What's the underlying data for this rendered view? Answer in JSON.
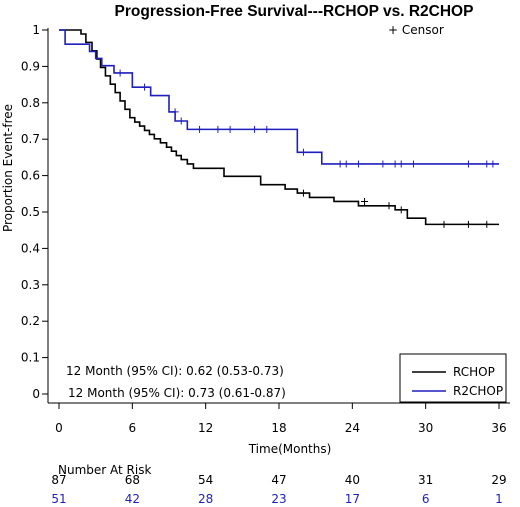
{
  "chart_data": {
    "type": "line",
    "title": "Progression-Free Survival---RCHOP vs. R2CHOP",
    "xlabel": "Time(Months)",
    "ylabel": "Proportion Event-free",
    "xlim": [
      0,
      36
    ],
    "ylim": [
      0,
      1
    ],
    "x_ticks": [
      "0",
      "6",
      "12",
      "18",
      "24",
      "30",
      "36"
    ],
    "y_ticks": [
      "0",
      "0.1",
      "0.2",
      "0.3",
      "0.4",
      "0.5",
      "0.6",
      "0.7",
      "0.8",
      "0.9",
      "1"
    ],
    "censor_label": "+ Censor",
    "legend": {
      "position": "bottom-right",
      "entries": [
        "RCHOP",
        "R2CHOP"
      ]
    },
    "annotations": [
      {
        "text": "12 Month (95% CI): 0.62 (0.53-0.73)",
        "color": "#000000"
      },
      {
        "text": "12 Month (95% CI): 0.73 (0.61-0.87)",
        "color": "#1f1fbf"
      }
    ],
    "risk_table": {
      "title": "Number At Risk",
      "rows": [
        {
          "color": "#000000",
          "values": [
            "87",
            "68",
            "54",
            "47",
            "40",
            "31",
            "29"
          ]
        },
        {
          "color": "#1f1fbf",
          "values": [
            "51",
            "42",
            "28",
            "23",
            "17",
            "6",
            "1"
          ]
        }
      ]
    },
    "series": [
      {
        "name": "RCHOP",
        "color": "#000000",
        "x": [
          0,
          1.8,
          2.2,
          2.7,
          3.1,
          3.4,
          3.8,
          4.2,
          4.6,
          5.0,
          5.4,
          5.8,
          6.2,
          6.6,
          7.0,
          7.4,
          7.8,
          8.3,
          8.8,
          9.2,
          9.6,
          10.0,
          10.5,
          11.0,
          12.0,
          13.5,
          14.5,
          16.5,
          18.5,
          19.5,
          20.5,
          22.5,
          24.5,
          27.5,
          28.5,
          30.0,
          36.0
        ],
        "y": [
          1,
          0.989,
          0.966,
          0.943,
          0.92,
          0.897,
          0.874,
          0.851,
          0.828,
          0.805,
          0.782,
          0.759,
          0.747,
          0.736,
          0.724,
          0.713,
          0.701,
          0.69,
          0.678,
          0.667,
          0.655,
          0.644,
          0.632,
          0.62,
          0.62,
          0.598,
          0.598,
          0.575,
          0.563,
          0.552,
          0.54,
          0.529,
          0.517,
          0.506,
          0.483,
          0.466,
          0.466
        ],
        "censor_x": [
          20.0,
          25.0,
          27.0,
          28.0,
          31.5,
          33.5,
          35.0
        ],
        "censor_y": [
          0.552,
          0.529,
          0.517,
          0.506,
          0.466,
          0.466,
          0.466
        ]
      },
      {
        "name": "R2CHOP",
        "color": "#1f1fbf",
        "x": [
          0,
          0.5,
          2.5,
          3.0,
          3.5,
          4.5,
          6.0,
          7.5,
          9.0,
          9.5,
          10.5,
          19.5,
          21.5,
          22.0,
          36.0
        ],
        "y": [
          1,
          0.961,
          0.941,
          0.922,
          0.902,
          0.882,
          0.843,
          0.82,
          0.775,
          0.75,
          0.727,
          0.664,
          0.632,
          0.632,
          0.632
        ],
        "censor_x": [
          5.0,
          7.0,
          9.5,
          10.0,
          11.5,
          13.0,
          14.0,
          16.0,
          17.0,
          20.0,
          23.0,
          23.5,
          24.5,
          26.5,
          27.5,
          28.0,
          29.0,
          33.5,
          35.0,
          35.5
        ],
        "censor_y": [
          0.882,
          0.843,
          0.775,
          0.75,
          0.727,
          0.727,
          0.727,
          0.727,
          0.727,
          0.664,
          0.632,
          0.632,
          0.632,
          0.632,
          0.632,
          0.632,
          0.632,
          0.632,
          0.632,
          0.632
        ]
      }
    ]
  }
}
